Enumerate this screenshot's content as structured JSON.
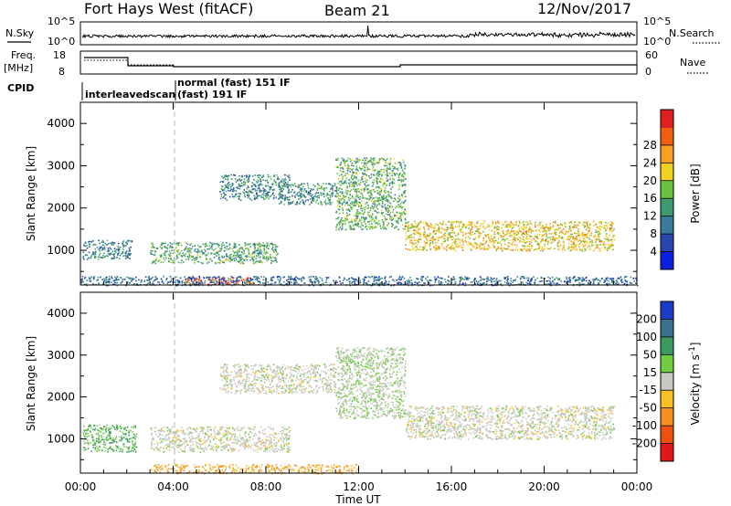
{
  "header": {
    "site": "Fort Hays West (fitACF)",
    "beam": "Beam 21",
    "date": "12/Nov/2017"
  },
  "left_labels": {
    "nsky": "N.Sky",
    "freq_top": "Freq.",
    "freq_unit": "[MHz]",
    "cpid": "CPID"
  },
  "right_labels": {
    "nsearch": "N.Search",
    "nave": "Nave"
  },
  "cpid_labels": {
    "scan1": "interleavedscan",
    "scan2_top": "normal (fast)  151 IF",
    "scan2_bottom": "(fast)  191 IF"
  },
  "noise_panel": {
    "left_ticks": [
      "10^5",
      "10^0"
    ],
    "right_ticks": [
      "10^5",
      "10^0"
    ]
  },
  "freq_panel": {
    "left_ticks": [
      "18",
      "8"
    ],
    "right_ticks": [
      "60",
      "0"
    ]
  },
  "x_axis": {
    "label": "Time UT",
    "ticks": [
      "00:00",
      "04:00",
      "08:00",
      "12:00",
      "16:00",
      "20:00",
      "00:00"
    ]
  },
  "power_panel": {
    "ylabel": "Slant Range [km]",
    "yticks": [
      "1000",
      "2000",
      "3000",
      "4000"
    ],
    "colorbar_label": "Power [dB]",
    "colorbar_ticks": [
      "4",
      "8",
      "12",
      "16",
      "20",
      "24",
      "28"
    ],
    "colorbar_colors": [
      "#0a20e0",
      "#2848b0",
      "#3a7a9a",
      "#3e9a70",
      "#6cc040",
      "#f0d020",
      "#f8a020",
      "#f06010",
      "#e02020"
    ]
  },
  "velocity_panel": {
    "ylabel": "Slant Range [km]",
    "yticks": [
      "1000",
      "2000",
      "3000",
      "4000"
    ],
    "colorbar_label": "Velocity [m s^-1]",
    "colorbar_ticks": [
      "200",
      "100",
      "50",
      "15",
      "-15",
      "-50",
      "-100",
      "-200"
    ],
    "colorbar_colors": [
      "#1a3cc8",
      "#3a7090",
      "#3a9a60",
      "#70cc40",
      "#c8c8c0",
      "#f8c020",
      "#f89020",
      "#f05010",
      "#e01818"
    ]
  },
  "chart_data": [
    {
      "type": "heatmap",
      "title": "Fort Hays West (fitACF)",
      "subtitle": "Beam 21",
      "xlabel": "Time UT",
      "ylabel": "Slant Range [km]",
      "xlim": [
        "00:00",
        "24:00"
      ],
      "ylim": [
        180,
        4500
      ],
      "colorbar": "Power [dB]",
      "regions": [
        {
          "x_start": 0.1,
          "x_end": 2.2,
          "range_low": 800,
          "range_high": 1250,
          "power_db": 10
        },
        {
          "x_start": 3.0,
          "x_end": 8.5,
          "range_low": 700,
          "range_high": 1200,
          "power_db": 13
        },
        {
          "x_start": 6.0,
          "x_end": 9.0,
          "range_low": 2200,
          "range_high": 2800,
          "power_db": 10
        },
        {
          "x_start": 8.5,
          "x_end": 11.0,
          "range_low": 2100,
          "range_high": 2600,
          "power_db": 11
        },
        {
          "x_start": 11.0,
          "x_end": 14.0,
          "range_low": 1500,
          "range_high": 3200,
          "power_db": 14
        },
        {
          "x_start": 14.0,
          "x_end": 23.0,
          "range_low": 1000,
          "range_high": 1700,
          "power_db": 20
        },
        {
          "x_start": 4.5,
          "x_end": 7.5,
          "range_low": 200,
          "range_high": 380,
          "power_db": 28
        },
        {
          "x_start": 0.0,
          "x_end": 24.0,
          "range_low": 180,
          "range_high": 400,
          "power_db": 8
        }
      ]
    },
    {
      "type": "heatmap",
      "xlabel": "Time UT",
      "ylabel": "Slant Range [km]",
      "xlim": [
        "00:00",
        "24:00"
      ],
      "ylim": [
        180,
        4500
      ],
      "colorbar": "Velocity [m s^-1]",
      "regions": [
        {
          "x_start": 0.1,
          "x_end": 2.4,
          "range_low": 700,
          "range_high": 1350,
          "velocity": 30
        },
        {
          "x_start": 3.0,
          "x_end": 9.0,
          "range_low": 700,
          "range_high": 1300,
          "velocity": 0
        },
        {
          "x_start": 6.0,
          "x_end": 11.0,
          "range_low": 2100,
          "range_high": 2800,
          "velocity": 0
        },
        {
          "x_start": 11.0,
          "x_end": 14.0,
          "range_low": 1500,
          "range_high": 3200,
          "velocity": 10
        },
        {
          "x_start": 14.0,
          "x_end": 23.0,
          "range_low": 1000,
          "range_high": 1800,
          "velocity": 0
        },
        {
          "x_start": 3.0,
          "x_end": 12.0,
          "range_low": 180,
          "range_high": 400,
          "velocity": -30
        }
      ]
    }
  ]
}
